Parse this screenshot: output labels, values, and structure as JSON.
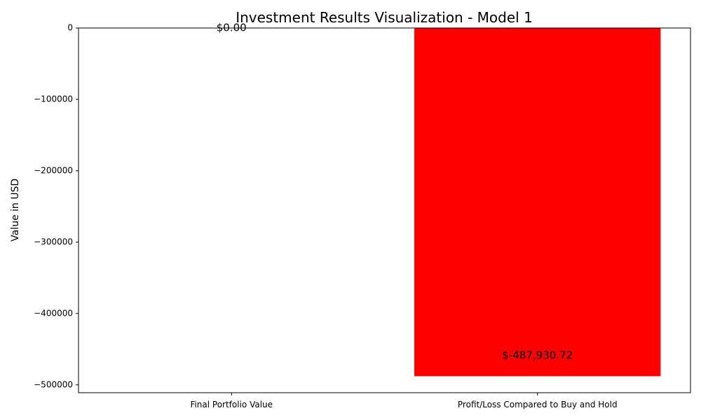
{
  "chart_data": {
    "type": "bar",
    "title": "Investment Results Visualization - Model 1",
    "xlabel": "",
    "ylabel": "Value in USD",
    "categories": [
      "Final Portfolio Value",
      "Profit/Loss Compared to Buy and Hold"
    ],
    "values": [
      0.0,
      -487930.72
    ],
    "data_labels": [
      "$0.00",
      "$-487,930.72"
    ],
    "bar_colors": [
      "#0000ff",
      "#ff0000"
    ],
    "ylim": [
      -511000,
      0
    ],
    "yticks": [
      0,
      -100000,
      -200000,
      -300000,
      -400000,
      -500000
    ],
    "ytick_labels": [
      "0",
      "−100000",
      "−200000",
      "−300000",
      "−400000",
      "−500000"
    ],
    "grid": false,
    "legend": "none"
  }
}
